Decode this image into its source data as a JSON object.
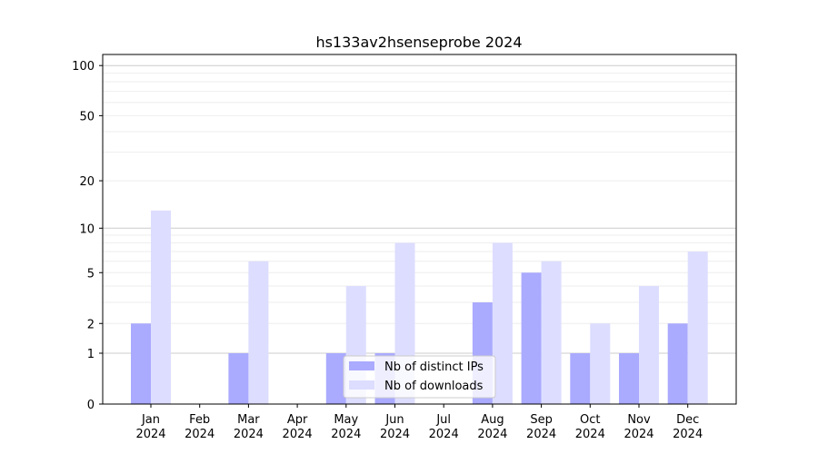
{
  "chart_data": {
    "type": "bar",
    "title": "hs133av2hsenseprobe 2024",
    "categories": [
      "Jan\n2024",
      "Feb\n2024",
      "Mar\n2024",
      "Apr\n2024",
      "May\n2024",
      "Jun\n2024",
      "Jul\n2024",
      "Aug\n2024",
      "Sep\n2024",
      "Oct\n2024",
      "Nov\n2024",
      "Dec\n2024"
    ],
    "yscale": "symlog",
    "ylim": [
      0,
      116
    ],
    "yticks": [
      0,
      1,
      2,
      5,
      10,
      20,
      50,
      100
    ],
    "grid": true,
    "legend_position": "bottom-center",
    "series": [
      {
        "name": "Nb of distinct IPs",
        "color": "#aaaaff",
        "values": [
          2,
          0,
          1,
          0,
          1,
          1,
          0,
          3,
          5,
          1,
          1,
          2
        ]
      },
      {
        "name": "Nb of downloads",
        "color": "#ddddff",
        "values": [
          13,
          0,
          6,
          0,
          4,
          8,
          0,
          8,
          6,
          2,
          4,
          7
        ]
      }
    ]
  }
}
